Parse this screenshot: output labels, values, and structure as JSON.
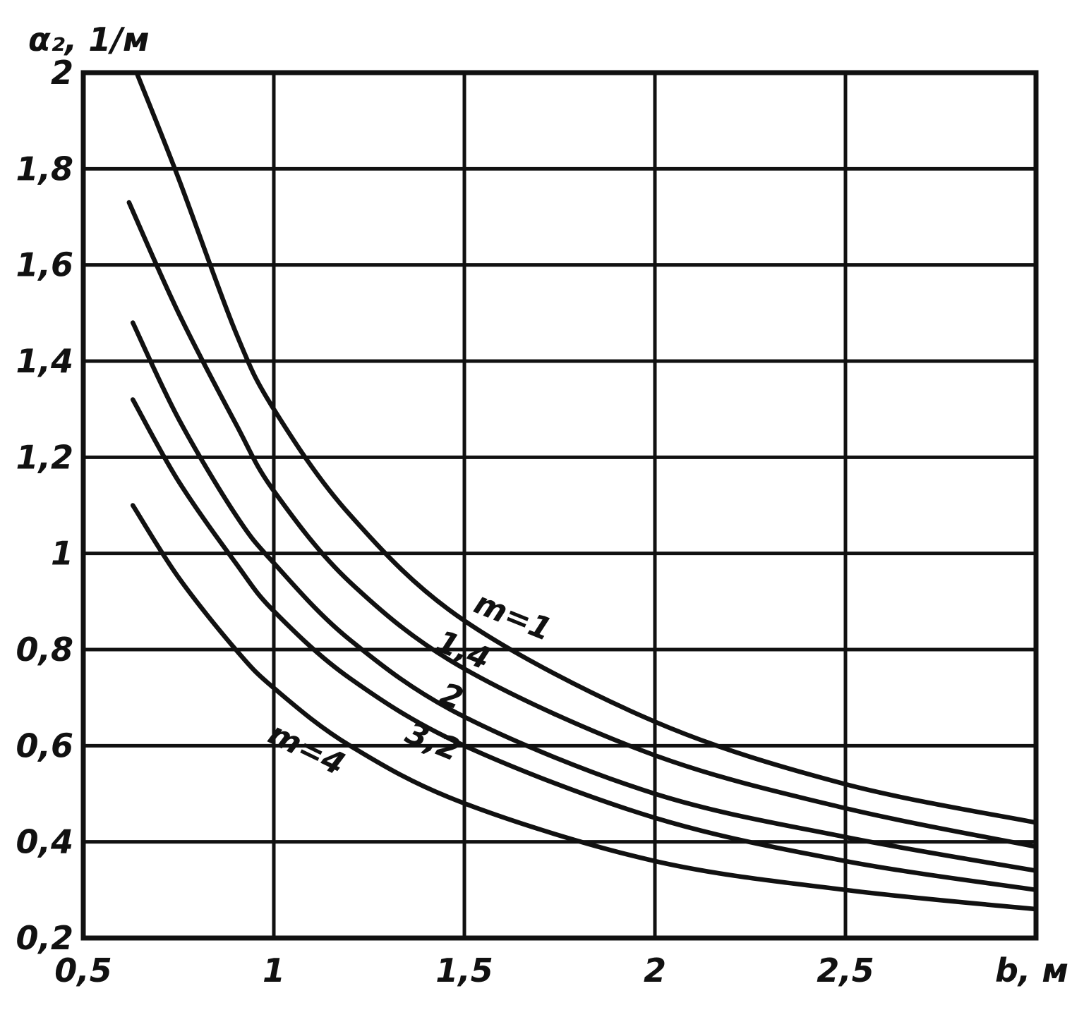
{
  "chart_data": {
    "type": "line",
    "ylabel": "α₂, 1/м",
    "xlabel": "b, м",
    "xlim": [
      0.5,
      3.0
    ],
    "ylim": [
      0.2,
      2.0
    ],
    "grid": true,
    "x_ticks": [
      0.5,
      1,
      1.5,
      2,
      2.5
    ],
    "x_tick_labels": [
      "0,5",
      "1",
      "1,5",
      "2",
      "2,5"
    ],
    "y_ticks": [
      0.2,
      0.4,
      0.6,
      0.8,
      1.0,
      1.2,
      1.4,
      1.6,
      1.8,
      2.0
    ],
    "y_tick_labels": [
      "0,2",
      "0,4",
      "0,6",
      "0,8",
      "1",
      "1,2",
      "1,4",
      "1,6",
      "1,8",
      "2"
    ],
    "series": [
      {
        "name": "m=1",
        "x": [
          0.64,
          0.75,
          0.9,
          1.0,
          1.2,
          1.5,
          2.0,
          2.5,
          3.0
        ],
        "y": [
          2.0,
          1.78,
          1.46,
          1.3,
          1.08,
          0.86,
          0.65,
          0.52,
          0.44
        ]
      },
      {
        "name": "1,4",
        "x": [
          0.62,
          0.75,
          0.9,
          1.0,
          1.2,
          1.5,
          2.0,
          2.5,
          3.0
        ],
        "y": [
          1.73,
          1.5,
          1.27,
          1.13,
          0.94,
          0.76,
          0.58,
          0.47,
          0.39
        ]
      },
      {
        "name": "2",
        "x": [
          0.63,
          0.75,
          0.9,
          1.0,
          1.2,
          1.5,
          2.0,
          2.5,
          3.0
        ],
        "y": [
          1.48,
          1.28,
          1.08,
          0.98,
          0.82,
          0.66,
          0.5,
          0.41,
          0.34
        ]
      },
      {
        "name": "3,2",
        "x": [
          0.63,
          0.75,
          0.9,
          1.0,
          1.2,
          1.5,
          2.0,
          2.5,
          3.0
        ],
        "y": [
          1.32,
          1.15,
          0.98,
          0.88,
          0.74,
          0.6,
          0.45,
          0.36,
          0.3
        ]
      },
      {
        "name": "m=4",
        "x": [
          0.63,
          0.75,
          0.9,
          1.0,
          1.2,
          1.5,
          2.0,
          2.5,
          3.0
        ],
        "y": [
          1.1,
          0.95,
          0.8,
          0.72,
          0.6,
          0.48,
          0.36,
          0.3,
          0.26
        ]
      }
    ]
  }
}
